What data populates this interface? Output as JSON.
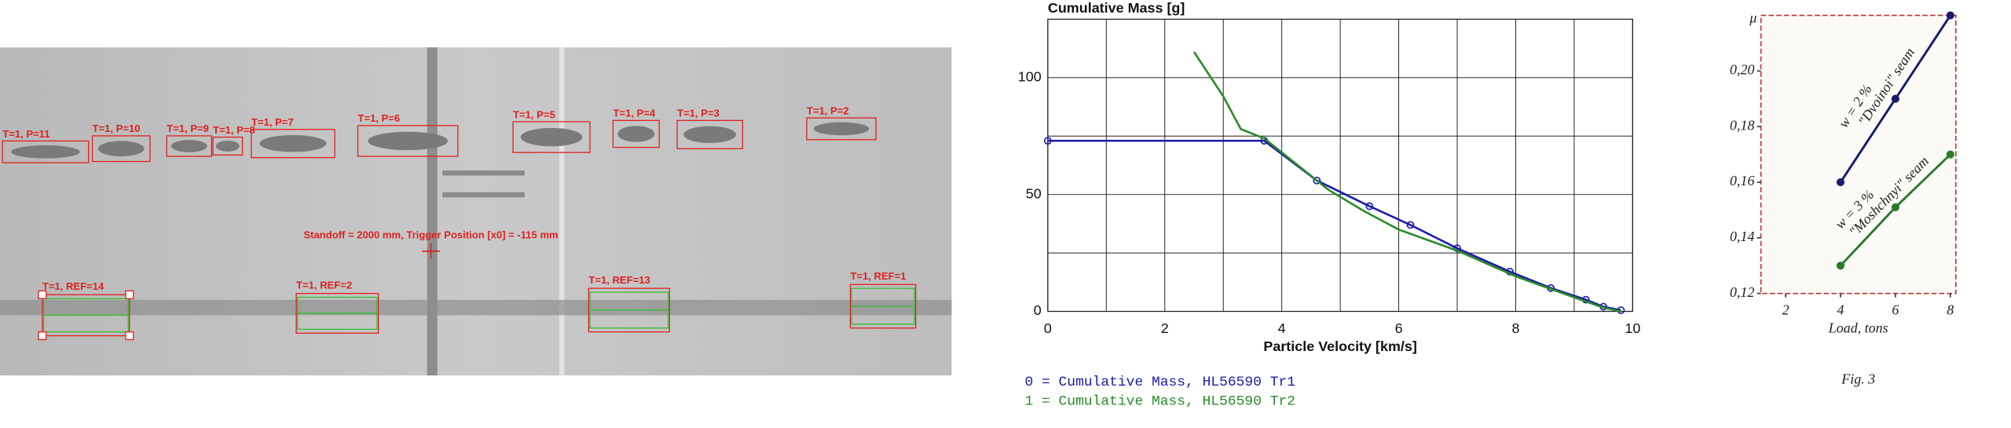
{
  "photo": {
    "particles": [
      {
        "label": "T=1, P=11"
      },
      {
        "label": "T=1, P=10"
      },
      {
        "label": "T=1, P=9"
      },
      {
        "label": "T=1, P=8"
      },
      {
        "label": "T=1, P=7"
      },
      {
        "label": "T=1, P=6"
      },
      {
        "label": "T=1, P=5"
      },
      {
        "label": "T=1, P=4"
      },
      {
        "label": "T=1, P=3"
      },
      {
        "label": "T=1, P=2"
      }
    ],
    "caption": "Standoff = 2000 mm, Trigger Position [x0] = -115 mm",
    "references": [
      {
        "label": "T=1, REF=14"
      },
      {
        "label": "T=1, REF=2"
      },
      {
        "label": "T=1, REF=13"
      },
      {
        "label": "T=1, REF=1"
      }
    ]
  },
  "chart_data": [
    {
      "type": "line",
      "title": "Cumulative Mass [g]",
      "xlabel": "Particle Velocity [km/s]",
      "xlim": [
        0,
        10
      ],
      "ylim": [
        0,
        125
      ],
      "xticks": [
        0,
        {
          "value": 1,
          "label": null
        },
        2,
        {
          "value": 3,
          "label": null
        },
        4,
        {
          "value": 5,
          "label": null
        },
        6,
        {
          "value": 7,
          "label": null
        },
        8,
        {
          "value": 9,
          "label": null
        },
        10
      ],
      "yticks": [
        0,
        {
          "value": 25,
          "label": null
        },
        50,
        {
          "value": 75,
          "label": null
        },
        100
      ],
      "grid": true,
      "legend": "below",
      "series": [
        {
          "name": "0 = Cumulative Mass, HL56590 Tr1",
          "color": "#1c1ca8",
          "markers": true,
          "x": [
            0,
            3.7,
            4.6,
            5.5,
            6.2,
            7.0,
            7.9,
            8.6,
            9.2,
            9.5,
            9.8
          ],
          "values": [
            73,
            73,
            56,
            45,
            37,
            27,
            17,
            10,
            5,
            2,
            0.5
          ]
        },
        {
          "name": "1 = Cumulative Mass, HL56590 Tr2",
          "color": "#2a8a2a",
          "markers": false,
          "x": [
            2.5,
            3.0,
            3.3,
            3.7,
            4.2,
            4.8,
            5.4,
            6.0,
            7.0,
            8.0,
            9.0,
            9.5,
            9.8
          ],
          "values": [
            111,
            92,
            78,
            74,
            64,
            52,
            43,
            35,
            26,
            15,
            6,
            1.6,
            0
          ]
        }
      ]
    },
    {
      "type": "line",
      "ylabel": "μ",
      "xlabel": "Load, tons",
      "caption": "Fig. 3",
      "xlim": [
        1.1,
        8.2
      ],
      "ylim": [
        0.12,
        0.22
      ],
      "xticks": [
        2,
        4,
        6,
        8
      ],
      "yticks": [
        {
          "value": 0.12,
          "label": "0,12"
        },
        {
          "value": 0.14,
          "label": "0,14"
        },
        {
          "value": 0.16,
          "label": "0,16"
        },
        {
          "value": 0.18,
          "label": "0,18"
        },
        {
          "value": 0.2,
          "label": "0,20"
        }
      ],
      "grid": false,
      "series": [
        {
          "name": "\"Dvoinoi\" seam",
          "note": "w = 2 %",
          "color": "#1a1a6e",
          "markers": true,
          "x": [
            4,
            6,
            8
          ],
          "values": [
            0.16,
            0.19,
            0.22
          ]
        },
        {
          "name": "\"Moshchnyi\" seam",
          "note": "w = 3 %",
          "color": "#2a7a2a",
          "markers": true,
          "x": [
            4,
            6,
            8
          ],
          "values": [
            0.13,
            0.151,
            0.17
          ]
        }
      ]
    }
  ]
}
